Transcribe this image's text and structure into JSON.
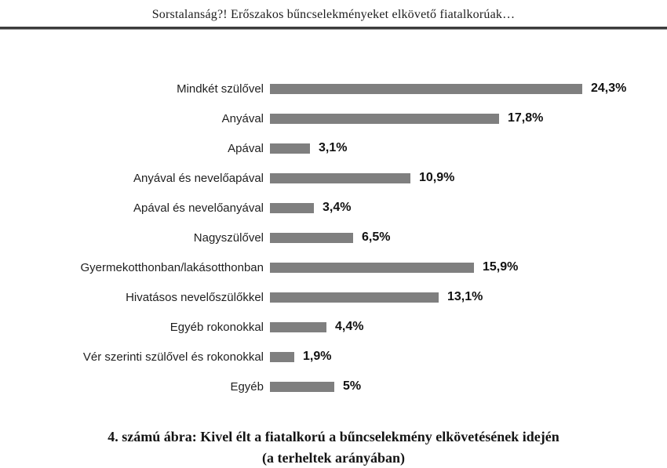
{
  "page": {
    "running_head": "Sorstalanság?! Erőszakos bűncselekményeket elkövető fiatalkorúak…",
    "caption_line1": "4. számú ábra: Kivel élt a fiatalkorú a bűncselekmény elkövetésének idején",
    "caption_line2": "(a terheltek arányában)"
  },
  "chart_data": {
    "type": "bar",
    "orientation": "horizontal",
    "title": "Kivel élt a fiatalkorú a bűncselekmény elkövetésének idején (a terheltek arányában)",
    "categories": [
      "Mindkét szülővel",
      "Anyával",
      "Apával",
      "Anyával és nevelőapával",
      "Apával és nevelőanyával",
      "Nagyszülővel",
      "Gyermekotthonban/lakásotthonban",
      "Hivatásos nevelőszülőkkel",
      "Egyéb rokonokkal",
      "Vér szerinti szülővel és rokonokkal",
      "Egyéb"
    ],
    "values": [
      24.3,
      17.8,
      3.1,
      10.9,
      3.4,
      6.5,
      15.9,
      13.1,
      4.4,
      1.9,
      5
    ],
    "value_labels": [
      "24,3%",
      "17,8%",
      "3,1%",
      "10,9%",
      "3,4%",
      "6,5%",
      "15,9%",
      "13,1%",
      "4,4%",
      "1,9%",
      "5%"
    ],
    "xlabel": "",
    "ylabel": "",
    "xlim": [
      0,
      25
    ],
    "grid": false,
    "legend": false,
    "data_labels_position": "end-of-bar",
    "bar_color": "#7f7f7f",
    "label_color": "#111111"
  }
}
